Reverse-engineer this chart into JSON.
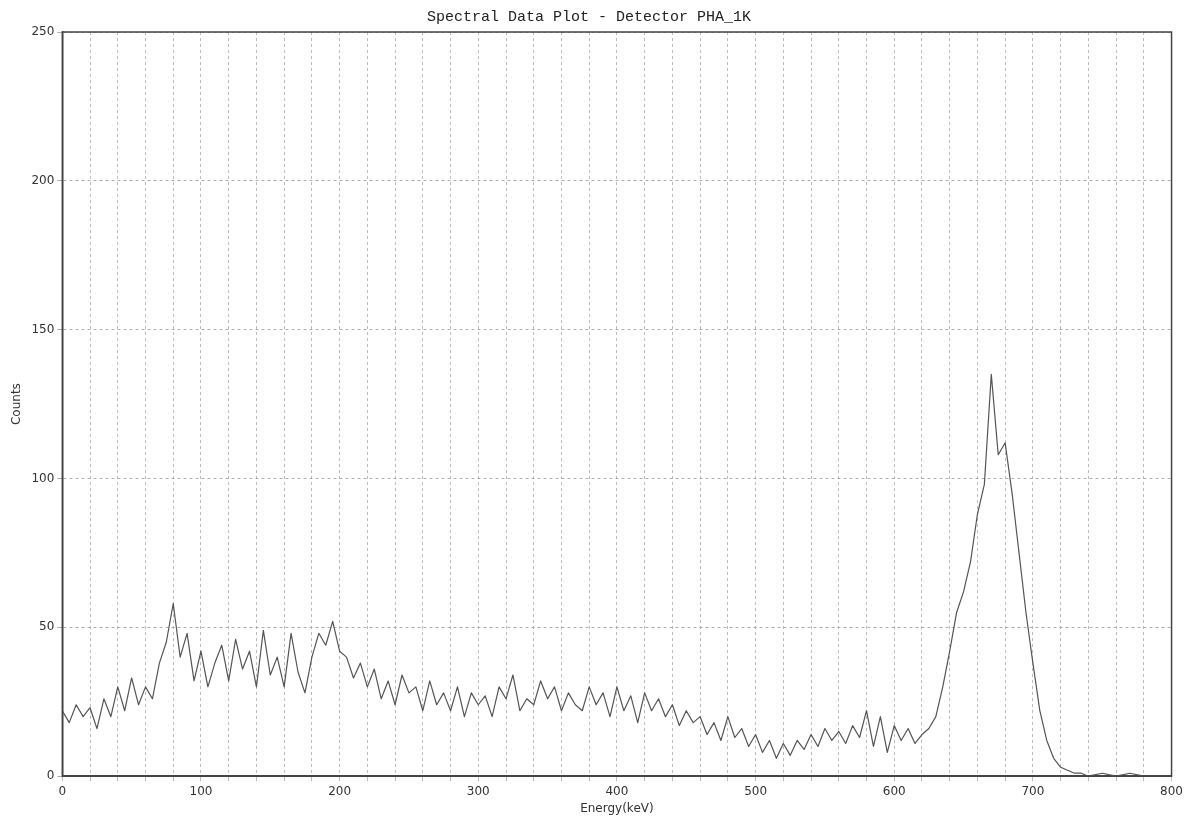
{
  "chart_data": {
    "type": "line",
    "title": "Spectral Data Plot - Detector PHA_1K",
    "xlabel": "Energy(keV)",
    "ylabel": "Counts",
    "x": [
      0,
      5,
      10,
      15,
      20,
      25,
      30,
      35,
      40,
      45,
      50,
      55,
      60,
      65,
      70,
      75,
      80,
      85,
      90,
      95,
      100,
      105,
      110,
      115,
      120,
      125,
      130,
      135,
      140,
      145,
      150,
      155,
      160,
      165,
      170,
      175,
      180,
      185,
      190,
      195,
      200,
      205,
      210,
      215,
      220,
      225,
      230,
      235,
      240,
      245,
      250,
      255,
      260,
      265,
      270,
      275,
      280,
      285,
      290,
      295,
      300,
      305,
      310,
      315,
      320,
      325,
      330,
      335,
      340,
      345,
      350,
      355,
      360,
      365,
      370,
      375,
      380,
      385,
      390,
      395,
      400,
      405,
      410,
      415,
      420,
      425,
      430,
      435,
      440,
      445,
      450,
      455,
      460,
      465,
      470,
      475,
      480,
      485,
      490,
      495,
      500,
      505,
      510,
      515,
      520,
      525,
      530,
      535,
      540,
      545,
      550,
      555,
      560,
      565,
      570,
      575,
      580,
      585,
      590,
      595,
      600,
      605,
      610,
      615,
      620,
      625,
      630,
      635,
      640,
      645,
      650,
      655,
      660,
      665,
      670,
      675,
      680,
      685,
      690,
      695,
      700,
      705,
      710,
      715,
      720,
      725,
      730,
      735,
      740,
      750,
      760,
      770,
      780,
      790,
      800
    ],
    "series": [
      {
        "color": "#555555",
        "values": [
          22,
          18,
          24,
          20,
          23,
          16,
          26,
          20,
          30,
          22,
          33,
          24,
          30,
          26,
          38,
          45,
          58,
          40,
          48,
          32,
          42,
          30,
          38,
          44,
          32,
          46,
          36,
          42,
          30,
          49,
          34,
          40,
          30,
          48,
          35,
          28,
          40,
          48,
          44,
          52,
          42,
          40,
          33,
          38,
          30,
          36,
          26,
          32,
          24,
          34,
          28,
          30,
          22,
          32,
          24,
          28,
          22,
          30,
          20,
          28,
          24,
          27,
          20,
          30,
          26,
          34,
          22,
          26,
          24,
          32,
          26,
          30,
          22,
          28,
          24,
          22,
          30,
          24,
          28,
          20,
          30,
          22,
          27,
          18,
          28,
          22,
          26,
          20,
          24,
          17,
          22,
          18,
          20,
          14,
          18,
          12,
          20,
          13,
          16,
          10,
          14,
          8,
          12,
          6,
          11,
          7,
          12,
          9,
          14,
          10,
          16,
          12,
          15,
          11,
          17,
          13,
          22,
          10,
          20,
          8,
          17,
          12,
          16,
          11,
          14,
          16,
          20,
          30,
          42,
          55,
          62,
          72,
          88,
          98,
          135,
          108,
          112,
          95,
          75,
          55,
          38,
          22,
          12,
          6,
          3,
          2,
          1,
          1,
          0,
          1,
          0,
          1,
          0,
          0,
          0
        ]
      }
    ],
    "xlim": [
      0,
      800
    ],
    "xticks": [
      0,
      {
        "value": 20,
        "label": null
      },
      {
        "value": 40,
        "label": null
      },
      {
        "value": 60,
        "label": null
      },
      {
        "value": 80,
        "label": null
      },
      100,
      {
        "value": 120,
        "label": null
      },
      {
        "value": 140,
        "label": null
      },
      {
        "value": 160,
        "label": null
      },
      {
        "value": 180,
        "label": null
      },
      200,
      {
        "value": 220,
        "label": null
      },
      {
        "value": 240,
        "label": null
      },
      {
        "value": 260,
        "label": null
      },
      {
        "value": 280,
        "label": null
      },
      300,
      {
        "value": 320,
        "label": null
      },
      {
        "value": 340,
        "label": null
      },
      {
        "value": 360,
        "label": null
      },
      {
        "value": 380,
        "label": null
      },
      400,
      {
        "value": 420,
        "label": null
      },
      {
        "value": 440,
        "label": null
      },
      {
        "value": 460,
        "label": null
      },
      {
        "value": 480,
        "label": null
      },
      500,
      {
        "value": 520,
        "label": null
      },
      {
        "value": 540,
        "label": null
      },
      {
        "value": 560,
        "label": null
      },
      {
        "value": 580,
        "label": null
      },
      600,
      {
        "value": 620,
        "label": null
      },
      {
        "value": 640,
        "label": null
      },
      {
        "value": 660,
        "label": null
      },
      {
        "value": 680,
        "label": null
      },
      700,
      {
        "value": 720,
        "label": null
      },
      {
        "value": 740,
        "label": null
      },
      {
        "value": 760,
        "label": null
      },
      {
        "value": 780,
        "label": null
      },
      800
    ],
    "ylim": [
      0,
      250
    ],
    "yticks": [
      0,
      50,
      100,
      150,
      200,
      250
    ],
    "grid": true,
    "legend": false,
    "marker": "none",
    "line_style": "solid"
  }
}
